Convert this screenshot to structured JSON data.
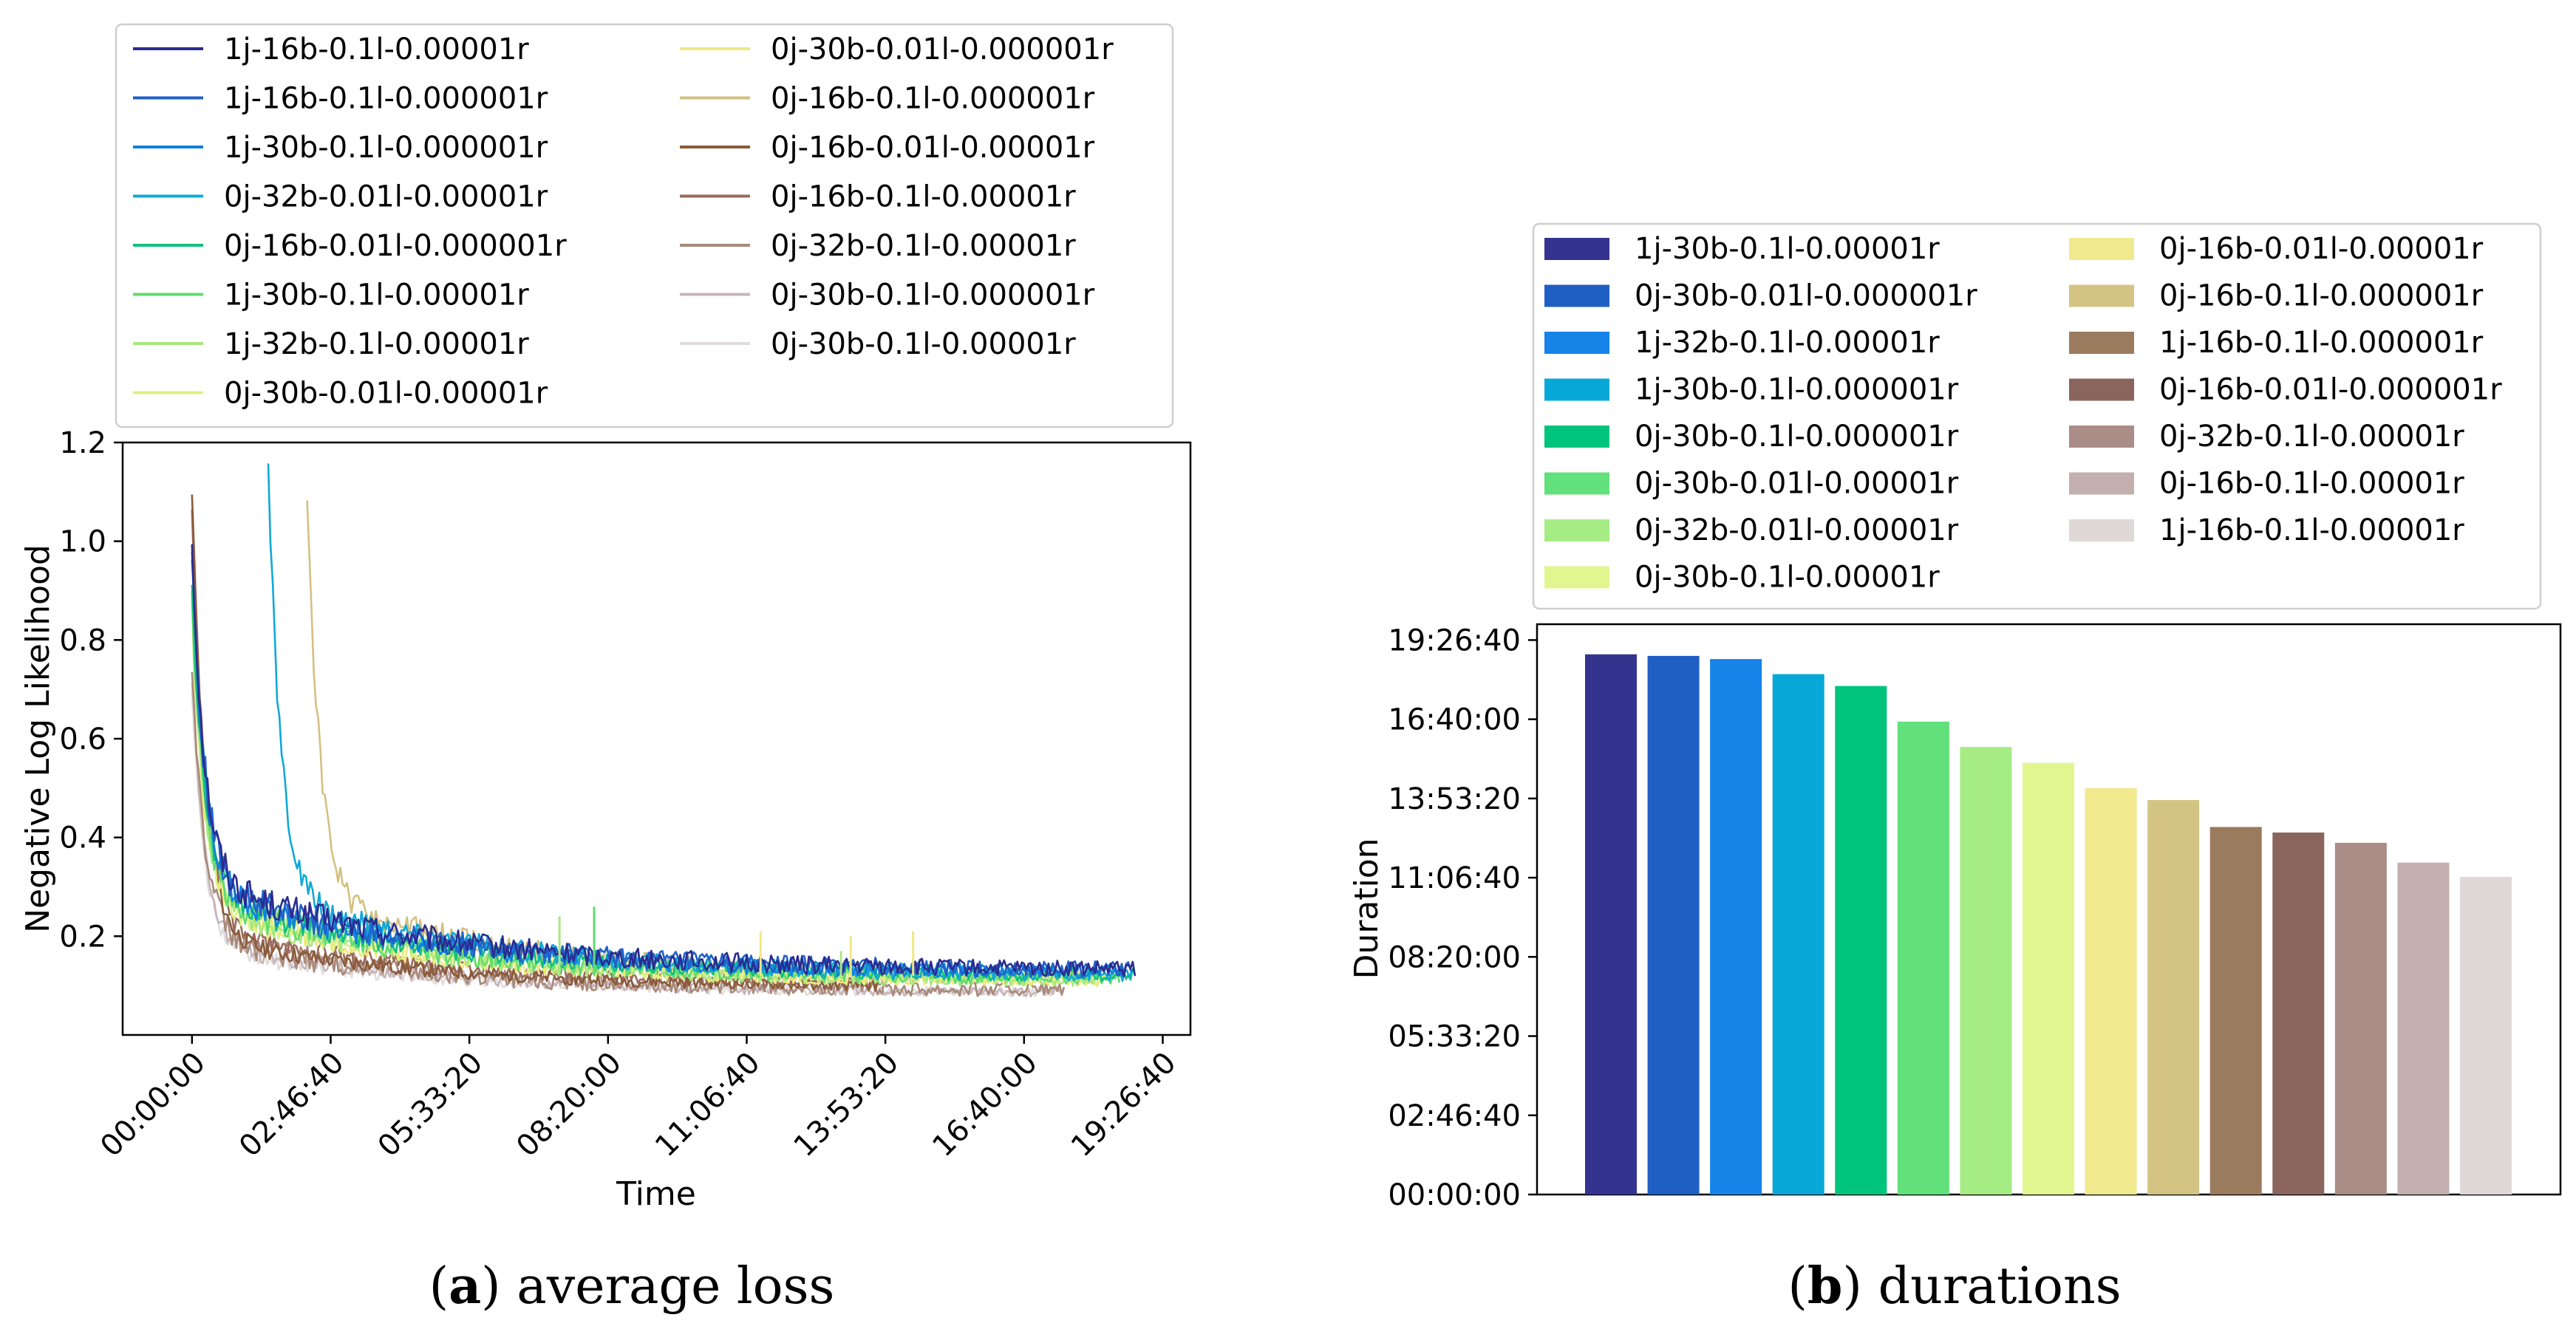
{
  "chart_data": [
    {
      "type": "line",
      "title": "",
      "xlabel": "Time",
      "ylabel": "Negative Log Likelihood",
      "x_unit": "seconds",
      "xlim": [
        -5000,
        72000
      ],
      "ylim": [
        0.0,
        1.2
      ],
      "x_ticks": [
        0,
        10000,
        20000,
        30000,
        40000,
        50000,
        60000,
        70000
      ],
      "x_tick_labels": [
        "00:00:00",
        "02:46:40",
        "05:33:20",
        "08:20:00",
        "11:06:40",
        "13:53:20",
        "16:40:00",
        "19:26:40"
      ],
      "y_ticks": [
        0.2,
        0.4,
        0.6,
        0.8,
        1.0,
        1.2
      ],
      "y_tick_labels": [
        "0.2",
        "0.4",
        "0.6",
        "0.8",
        "1.0",
        "1.2"
      ],
      "legend_position": "above",
      "series": [
        {
          "name": "1j-16b-0.1l-0.00001r",
          "color": "#2b2b8f",
          "start": 0,
          "end": 68000,
          "peak": 1.0,
          "plateau": 0.13,
          "curve": 0.32,
          "noise": 0.035,
          "mid": 0.25
        },
        {
          "name": "1j-16b-0.1l-0.000001r",
          "color": "#2060c8",
          "start": 0,
          "end": 68000,
          "peak": 0.98,
          "plateau": 0.13,
          "curve": 0.31,
          "noise": 0.035,
          "mid": 0.25
        },
        {
          "name": "1j-30b-0.1l-0.000001r",
          "color": "#1080e0",
          "start": 0,
          "end": 67500,
          "peak": 0.96,
          "plateau": 0.125,
          "curve": 0.3,
          "noise": 0.03,
          "mid": 0.24
        },
        {
          "name": "0j-32b-0.01l-0.00001r",
          "color": "#10a8d8",
          "start": 5500,
          "end": 68000,
          "peak": 1.15,
          "plateau": 0.12,
          "curve": 0.28,
          "noise": 0.03,
          "mid": 0.22
        },
        {
          "name": "0j-16b-0.01l-0.000001r",
          "color": "#10c080",
          "start": 0,
          "end": 68000,
          "peak": 0.9,
          "plateau": 0.12,
          "curve": 0.29,
          "noise": 0.03,
          "mid": 0.22
        },
        {
          "name": "1j-30b-0.1l-0.00001r",
          "color": "#60dc70",
          "start": 0,
          "end": 67000,
          "peak": 0.88,
          "plateau": 0.115,
          "curve": 0.28,
          "noise": 0.035,
          "mid": 0.21
        },
        {
          "name": "1j-32b-0.1l-0.00001r",
          "color": "#a8e880",
          "start": 0,
          "end": 66000,
          "peak": 0.87,
          "plateau": 0.11,
          "curve": 0.27,
          "noise": 0.03,
          "mid": 0.2
        },
        {
          "name": "0j-30b-0.01l-0.00001r",
          "color": "#e0f080",
          "start": 0,
          "end": 66000,
          "peak": 0.85,
          "plateau": 0.11,
          "curve": 0.27,
          "noise": 0.03,
          "mid": 0.19
        },
        {
          "name": "0j-30b-0.01l-0.000001r",
          "color": "#f0e880",
          "start": 0,
          "end": 65500,
          "peak": 0.85,
          "plateau": 0.11,
          "curve": 0.26,
          "noise": 0.03,
          "mid": 0.18
        },
        {
          "name": "0j-16b-0.1l-0.000001r",
          "color": "#d4c080",
          "start": 8300,
          "end": 65000,
          "peak": 1.11,
          "plateau": 0.11,
          "curve": 0.28,
          "noise": 0.03,
          "mid": 0.2
        },
        {
          "name": "0j-16b-0.01l-0.00001r",
          "color": "#8a5a3a",
          "start": 0,
          "end": 50000,
          "peak": 1.11,
          "plateau": 0.095,
          "curve": 0.2,
          "noise": 0.02,
          "mid": 0.12
        },
        {
          "name": "0j-16b-0.1l-0.00001r",
          "color": "#9a6a5a",
          "start": 0,
          "end": 49500,
          "peak": 1.08,
          "plateau": 0.1,
          "curve": 0.22,
          "noise": 0.025,
          "mid": 0.13
        },
        {
          "name": "0j-32b-0.1l-0.00001r",
          "color": "#a88a7a",
          "start": 0,
          "end": 63000,
          "peak": 0.75,
          "plateau": 0.09,
          "curve": 0.2,
          "noise": 0.03,
          "mid": 0.14
        },
        {
          "name": "0j-30b-0.1l-0.000001r",
          "color": "#c8b4b8",
          "start": 0,
          "end": 63000,
          "peak": 0.72,
          "plateau": 0.085,
          "curve": 0.19,
          "noise": 0.02,
          "mid": 0.11
        },
        {
          "name": "0j-30b-0.1l-0.00001r",
          "color": "#e0dcdc",
          "start": 0,
          "end": 63000,
          "peak": 0.7,
          "plateau": 0.085,
          "curve": 0.18,
          "noise": 0.02,
          "mid": 0.1
        }
      ],
      "spikes": [
        {
          "x": 41000,
          "y": 0.21,
          "color": "#f0e880"
        },
        {
          "x": 47500,
          "y": 0.2,
          "color": "#f0e880"
        },
        {
          "x": 52000,
          "y": 0.21,
          "color": "#f0e880"
        },
        {
          "x": 46800,
          "y": 0.17,
          "color": "#a8e880"
        },
        {
          "x": 29000,
          "y": 0.26,
          "color": "#60dc70"
        },
        {
          "x": 26500,
          "y": 0.24,
          "color": "#a8e880"
        }
      ]
    },
    {
      "type": "bar",
      "title": "",
      "xlabel": "",
      "ylabel": "Duration",
      "y_unit": "seconds",
      "ylim": [
        0,
        72000
      ],
      "y_ticks": [
        0,
        10000,
        20000,
        30000,
        40000,
        50000,
        60000,
        70000
      ],
      "y_tick_labels": [
        "00:00:00",
        "02:46:40",
        "05:33:20",
        "08:20:00",
        "11:06:40",
        "13:53:20",
        "16:40:00",
        "19:26:40"
      ],
      "legend_position": "above",
      "categories": [
        "1j-30b-0.1l-0.00001r",
        "0j-30b-0.01l-0.000001r",
        "1j-32b-0.1l-0.00001r",
        "1j-30b-0.1l-0.000001r",
        "0j-30b-0.1l-0.000001r",
        "0j-30b-0.01l-0.00001r",
        "0j-32b-0.01l-0.00001r",
        "0j-30b-0.1l-0.00001r",
        "0j-16b-0.01l-0.00001r",
        "0j-16b-0.1l-0.000001r",
        "1j-16b-0.1l-0.000001r",
        "0j-16b-0.01l-0.000001r",
        "0j-32b-0.1l-0.00001r",
        "0j-16b-0.1l-0.00001r",
        "1j-16b-0.1l-0.00001r"
      ],
      "values": [
        68200,
        68000,
        67600,
        65700,
        64200,
        59700,
        56500,
        54500,
        51300,
        49800,
        46400,
        45700,
        44400,
        41900,
        40100
      ],
      "colors": [
        "#34348f",
        "#1f5fc4",
        "#1583e8",
        "#07a8d7",
        "#01c47c",
        "#62e07b",
        "#a6ec85",
        "#e2f690",
        "#f1e98d",
        "#d4c484",
        "#9b7b5e",
        "#8a655d",
        "#a98d86",
        "#c3b0ae",
        "#e0d8d8"
      ]
    }
  ],
  "captions": {
    "left_letter": "a",
    "left_text": " average loss",
    "right_letter": "b",
    "right_text": " durations"
  }
}
